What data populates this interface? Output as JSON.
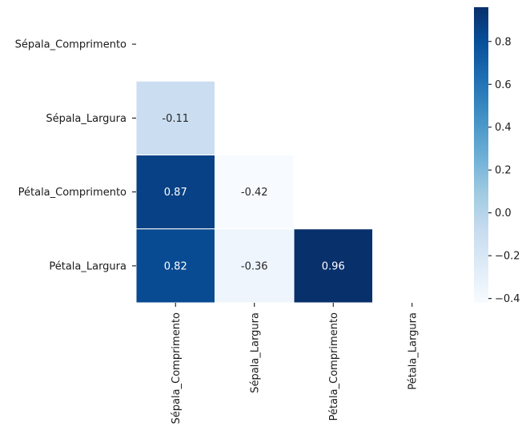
{
  "chart_data": {
    "type": "heatmap",
    "subtype": "lower-triangle correlation matrix",
    "title": "",
    "xlabel": "",
    "ylabel": "",
    "rows": [
      "Sépala_Comprimento",
      "Sépala_Largura",
      "Pétala_Comprimento",
      "Pétala_Largura"
    ],
    "columns": [
      "Sépala_Comprimento",
      "Sépala_Largura",
      "Pétala_Comprimento",
      "Pétala_Largura"
    ],
    "cells": [
      {
        "row": 1,
        "col": 0,
        "value": -0.11,
        "label": "-0.11"
      },
      {
        "row": 2,
        "col": 0,
        "value": 0.87,
        "label": "0.87"
      },
      {
        "row": 2,
        "col": 1,
        "value": -0.42,
        "label": "-0.42"
      },
      {
        "row": 3,
        "col": 0,
        "value": 0.82,
        "label": "0.82"
      },
      {
        "row": 3,
        "col": 1,
        "value": -0.36,
        "label": "-0.36"
      },
      {
        "row": 3,
        "col": 2,
        "value": 0.96,
        "label": "0.96"
      }
    ],
    "colorbar": {
      "colormap": "Blues",
      "vmin": -0.42,
      "vmax": 0.96,
      "ticks": [
        -0.4,
        -0.2,
        0.0,
        0.2,
        0.4,
        0.6,
        0.8
      ],
      "tick_labels": [
        "−0.4",
        "−0.2",
        "0.0",
        "0.2",
        "0.4",
        "0.6",
        "0.8"
      ]
    },
    "colors": {
      "light_text": "#ffffff",
      "dark_text": "#262626",
      "cell_border": "#ffffff"
    }
  }
}
